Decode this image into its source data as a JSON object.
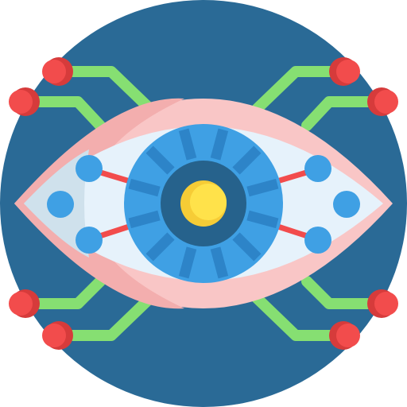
{
  "icon": {
    "name": "cyber-eye-icon",
    "description_label": ""
  },
  "colors": {
    "background_circle": "#2a6a96",
    "circuit_wire": "#86df72",
    "circuit_node": "#f24c4c",
    "circuit_node_shade": "#d63b3b",
    "eyelid": "#f9c6c6",
    "eyelid_shade": "#f3aeae",
    "sclera": "#e6f2fb",
    "sclera_shade": "#cfe1ec",
    "iris": "#3fa0e4",
    "iris_stripe": "#2d84c8",
    "pupil_ring": "#26628c",
    "pupil_core": "#ffe24a",
    "pupil_core_shade": "#f6cc36",
    "connector_line": "#f24c4c",
    "connector_dot": "#3fa0e4"
  }
}
